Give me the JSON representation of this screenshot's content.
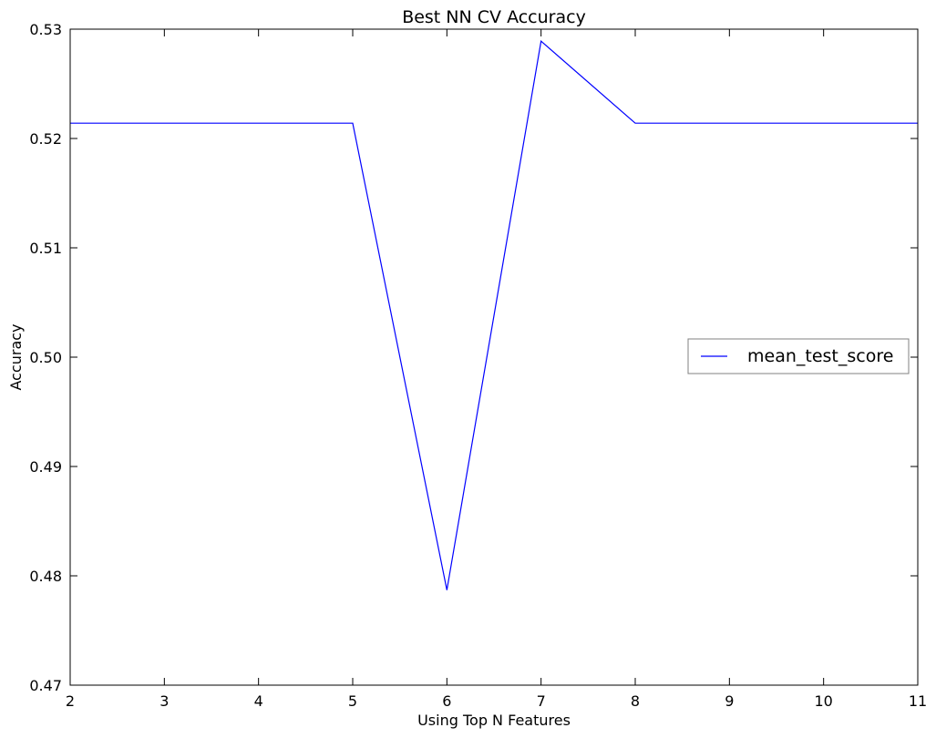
{
  "chart_data": {
    "type": "line",
    "title": "Best NN CV Accuracy",
    "xlabel": "Using Top N Features",
    "ylabel": "Accuracy",
    "xlim": [
      2,
      11
    ],
    "ylim": [
      0.47,
      0.53
    ],
    "xticks": [
      2,
      3,
      4,
      5,
      6,
      7,
      8,
      9,
      10,
      11
    ],
    "xtick_labels": [
      "2",
      "3",
      "4",
      "5",
      "6",
      "7",
      "8",
      "9",
      "10",
      "11"
    ],
    "yticks": [
      0.47,
      0.48,
      0.49,
      0.5,
      0.51,
      0.52,
      0.53
    ],
    "ytick_labels": [
      "0.47",
      "0.48",
      "0.49",
      "0.50",
      "0.51",
      "0.52",
      "0.53"
    ],
    "grid": false,
    "legend_position": "right",
    "series": [
      {
        "name": "mean_test_score",
        "color": "#0000ff",
        "x": [
          2,
          3,
          4,
          5,
          6,
          7,
          8,
          9,
          10,
          11
        ],
        "y": [
          0.5214,
          0.5214,
          0.5214,
          0.5214,
          0.4787,
          0.5289,
          0.5214,
          0.5214,
          0.5214,
          0.5214
        ]
      }
    ]
  }
}
